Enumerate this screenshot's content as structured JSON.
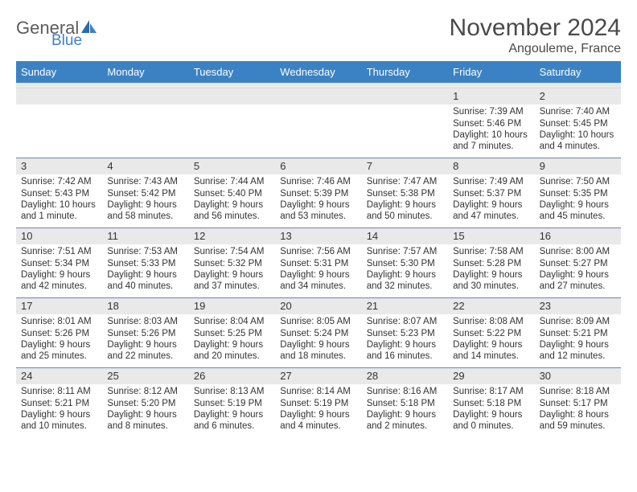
{
  "brand": {
    "general": "General",
    "blue": "Blue"
  },
  "title": {
    "month": "November 2024",
    "location": "Angouleme, France"
  },
  "colors": {
    "header_bg": "#3b82c4",
    "header_fg": "#ffffff",
    "row_divider": "#6d87a8",
    "daynum_bg": "#e9e9e9",
    "text": "#333333",
    "title_color": "#4a4a4a"
  },
  "typography": {
    "month_fontsize": 30,
    "location_fontsize": 16,
    "dayhead_fontsize": 13,
    "cell_fontsize": 11.5
  },
  "dayHeaders": [
    "Sunday",
    "Monday",
    "Tuesday",
    "Wednesday",
    "Thursday",
    "Friday",
    "Saturday"
  ],
  "weeks": [
    [
      null,
      null,
      null,
      null,
      null,
      {
        "n": "1",
        "sunrise": "Sunrise: 7:39 AM",
        "sunset": "Sunset: 5:46 PM",
        "dl1": "Daylight: 10 hours",
        "dl2": "and 7 minutes."
      },
      {
        "n": "2",
        "sunrise": "Sunrise: 7:40 AM",
        "sunset": "Sunset: 5:45 PM",
        "dl1": "Daylight: 10 hours",
        "dl2": "and 4 minutes."
      }
    ],
    [
      {
        "n": "3",
        "sunrise": "Sunrise: 7:42 AM",
        "sunset": "Sunset: 5:43 PM",
        "dl1": "Daylight: 10 hours",
        "dl2": "and 1 minute."
      },
      {
        "n": "4",
        "sunrise": "Sunrise: 7:43 AM",
        "sunset": "Sunset: 5:42 PM",
        "dl1": "Daylight: 9 hours",
        "dl2": "and 58 minutes."
      },
      {
        "n": "5",
        "sunrise": "Sunrise: 7:44 AM",
        "sunset": "Sunset: 5:40 PM",
        "dl1": "Daylight: 9 hours",
        "dl2": "and 56 minutes."
      },
      {
        "n": "6",
        "sunrise": "Sunrise: 7:46 AM",
        "sunset": "Sunset: 5:39 PM",
        "dl1": "Daylight: 9 hours",
        "dl2": "and 53 minutes."
      },
      {
        "n": "7",
        "sunrise": "Sunrise: 7:47 AM",
        "sunset": "Sunset: 5:38 PM",
        "dl1": "Daylight: 9 hours",
        "dl2": "and 50 minutes."
      },
      {
        "n": "8",
        "sunrise": "Sunrise: 7:49 AM",
        "sunset": "Sunset: 5:37 PM",
        "dl1": "Daylight: 9 hours",
        "dl2": "and 47 minutes."
      },
      {
        "n": "9",
        "sunrise": "Sunrise: 7:50 AM",
        "sunset": "Sunset: 5:35 PM",
        "dl1": "Daylight: 9 hours",
        "dl2": "and 45 minutes."
      }
    ],
    [
      {
        "n": "10",
        "sunrise": "Sunrise: 7:51 AM",
        "sunset": "Sunset: 5:34 PM",
        "dl1": "Daylight: 9 hours",
        "dl2": "and 42 minutes."
      },
      {
        "n": "11",
        "sunrise": "Sunrise: 7:53 AM",
        "sunset": "Sunset: 5:33 PM",
        "dl1": "Daylight: 9 hours",
        "dl2": "and 40 minutes."
      },
      {
        "n": "12",
        "sunrise": "Sunrise: 7:54 AM",
        "sunset": "Sunset: 5:32 PM",
        "dl1": "Daylight: 9 hours",
        "dl2": "and 37 minutes."
      },
      {
        "n": "13",
        "sunrise": "Sunrise: 7:56 AM",
        "sunset": "Sunset: 5:31 PM",
        "dl1": "Daylight: 9 hours",
        "dl2": "and 34 minutes."
      },
      {
        "n": "14",
        "sunrise": "Sunrise: 7:57 AM",
        "sunset": "Sunset: 5:30 PM",
        "dl1": "Daylight: 9 hours",
        "dl2": "and 32 minutes."
      },
      {
        "n": "15",
        "sunrise": "Sunrise: 7:58 AM",
        "sunset": "Sunset: 5:28 PM",
        "dl1": "Daylight: 9 hours",
        "dl2": "and 30 minutes."
      },
      {
        "n": "16",
        "sunrise": "Sunrise: 8:00 AM",
        "sunset": "Sunset: 5:27 PM",
        "dl1": "Daylight: 9 hours",
        "dl2": "and 27 minutes."
      }
    ],
    [
      {
        "n": "17",
        "sunrise": "Sunrise: 8:01 AM",
        "sunset": "Sunset: 5:26 PM",
        "dl1": "Daylight: 9 hours",
        "dl2": "and 25 minutes."
      },
      {
        "n": "18",
        "sunrise": "Sunrise: 8:03 AM",
        "sunset": "Sunset: 5:26 PM",
        "dl1": "Daylight: 9 hours",
        "dl2": "and 22 minutes."
      },
      {
        "n": "19",
        "sunrise": "Sunrise: 8:04 AM",
        "sunset": "Sunset: 5:25 PM",
        "dl1": "Daylight: 9 hours",
        "dl2": "and 20 minutes."
      },
      {
        "n": "20",
        "sunrise": "Sunrise: 8:05 AM",
        "sunset": "Sunset: 5:24 PM",
        "dl1": "Daylight: 9 hours",
        "dl2": "and 18 minutes."
      },
      {
        "n": "21",
        "sunrise": "Sunrise: 8:07 AM",
        "sunset": "Sunset: 5:23 PM",
        "dl1": "Daylight: 9 hours",
        "dl2": "and 16 minutes."
      },
      {
        "n": "22",
        "sunrise": "Sunrise: 8:08 AM",
        "sunset": "Sunset: 5:22 PM",
        "dl1": "Daylight: 9 hours",
        "dl2": "and 14 minutes."
      },
      {
        "n": "23",
        "sunrise": "Sunrise: 8:09 AM",
        "sunset": "Sunset: 5:21 PM",
        "dl1": "Daylight: 9 hours",
        "dl2": "and 12 minutes."
      }
    ],
    [
      {
        "n": "24",
        "sunrise": "Sunrise: 8:11 AM",
        "sunset": "Sunset: 5:21 PM",
        "dl1": "Daylight: 9 hours",
        "dl2": "and 10 minutes."
      },
      {
        "n": "25",
        "sunrise": "Sunrise: 8:12 AM",
        "sunset": "Sunset: 5:20 PM",
        "dl1": "Daylight: 9 hours",
        "dl2": "and 8 minutes."
      },
      {
        "n": "26",
        "sunrise": "Sunrise: 8:13 AM",
        "sunset": "Sunset: 5:19 PM",
        "dl1": "Daylight: 9 hours",
        "dl2": "and 6 minutes."
      },
      {
        "n": "27",
        "sunrise": "Sunrise: 8:14 AM",
        "sunset": "Sunset: 5:19 PM",
        "dl1": "Daylight: 9 hours",
        "dl2": "and 4 minutes."
      },
      {
        "n": "28",
        "sunrise": "Sunrise: 8:16 AM",
        "sunset": "Sunset: 5:18 PM",
        "dl1": "Daylight: 9 hours",
        "dl2": "and 2 minutes."
      },
      {
        "n": "29",
        "sunrise": "Sunrise: 8:17 AM",
        "sunset": "Sunset: 5:18 PM",
        "dl1": "Daylight: 9 hours",
        "dl2": "and 0 minutes."
      },
      {
        "n": "30",
        "sunrise": "Sunrise: 8:18 AM",
        "sunset": "Sunset: 5:17 PM",
        "dl1": "Daylight: 8 hours",
        "dl2": "and 59 minutes."
      }
    ]
  ]
}
